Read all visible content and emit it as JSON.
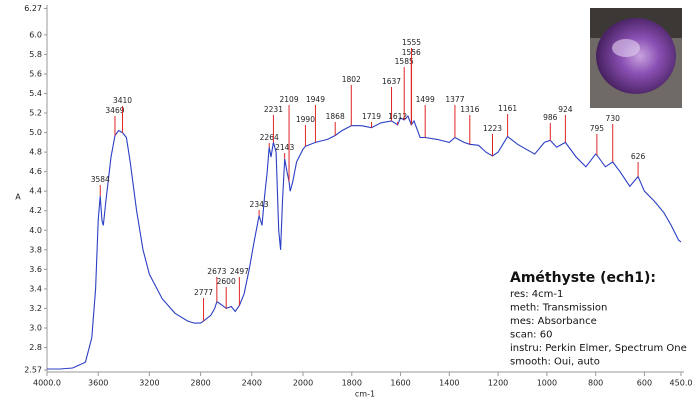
{
  "chart_data": {
    "type": "line",
    "x_label": "cm-1",
    "y_label": "A",
    "xlim": [
      4000,
      450
    ],
    "xbreak": 2000,
    "ylim": [
      2.57,
      6.27
    ],
    "xticks": [
      {
        "value": 4000,
        "label": "4000.0"
      },
      3600,
      3200,
      2800,
      2400,
      2000,
      1800,
      1600,
      1400,
      1200,
      1000,
      800,
      600,
      {
        "value": 450,
        "label": "450.0"
      }
    ],
    "yticks": [
      2.57,
      2.8,
      {
        "value": 3,
        "label": "3.0"
      },
      3.2,
      3.4,
      3.6,
      3.8,
      {
        "value": 4,
        "label": "4.0"
      },
      4.2,
      4.4,
      4.6,
      4.8,
      {
        "value": 5,
        "label": "5.0"
      },
      5.2,
      5.4,
      5.6,
      5.8,
      {
        "value": 6,
        "label": "6.0"
      },
      6.27
    ],
    "color": "#2b3fc4",
    "peak_color": "#e02424",
    "x": [
      4000,
      3900,
      3800,
      3700,
      3650,
      3620,
      3600,
      3584,
      3570,
      3560,
      3540,
      3500,
      3469,
      3440,
      3410,
      3380,
      3350,
      3300,
      3250,
      3200,
      3100,
      3000,
      2900,
      2850,
      2800,
      2777,
      2720,
      2690,
      2673,
      2640,
      2600,
      2560,
      2530,
      2497,
      2460,
      2420,
      2380,
      2343,
      2320,
      2300,
      2280,
      2264,
      2250,
      2231,
      2210,
      2190,
      2175,
      2160,
      2143,
      2125,
      2109,
      2100,
      2080,
      2050,
      2000,
      1990,
      1949,
      1900,
      1868,
      1840,
      1802,
      1760,
      1719,
      1680,
      1637,
      1612,
      1600,
      1585,
      1570,
      1556,
      1545,
      1520,
      1499,
      1450,
      1400,
      1377,
      1340,
      1316,
      1280,
      1250,
      1223,
      1200,
      1161,
      1120,
      1050,
      1010,
      986,
      960,
      924,
      880,
      840,
      800,
      795,
      760,
      730,
      700,
      660,
      626,
      600,
      560,
      520,
      490,
      460,
      450
    ],
    "values": [
      2.58,
      2.58,
      2.59,
      2.65,
      2.9,
      3.4,
      4.1,
      4.35,
      4.1,
      4.05,
      4.3,
      4.75,
      4.97,
      5.02,
      5.0,
      4.95,
      4.7,
      4.2,
      3.8,
      3.55,
      3.3,
      3.15,
      3.07,
      3.05,
      3.05,
      3.07,
      3.13,
      3.2,
      3.27,
      3.24,
      3.2,
      3.22,
      3.17,
      3.23,
      3.35,
      3.6,
      3.9,
      4.15,
      4.05,
      4.35,
      4.6,
      4.85,
      4.75,
      4.9,
      4.8,
      4.0,
      3.8,
      4.3,
      4.73,
      4.6,
      4.5,
      4.4,
      4.5,
      4.7,
      4.83,
      4.86,
      4.9,
      4.93,
      4.97,
      5.02,
      5.07,
      5.07,
      5.05,
      5.1,
      5.12,
      5.08,
      5.15,
      5.13,
      5.17,
      5.08,
      5.12,
      4.95,
      4.95,
      4.93,
      4.9,
      4.95,
      4.9,
      4.88,
      4.87,
      4.8,
      4.76,
      4.8,
      4.96,
      4.88,
      4.78,
      4.9,
      4.92,
      4.85,
      4.9,
      4.75,
      4.65,
      4.78,
      4.77,
      4.65,
      4.7,
      4.6,
      4.45,
      4.55,
      4.4,
      4.3,
      4.18,
      4.05,
      3.9,
      3.88
    ],
    "peaks": [
      3584,
      3469,
      3410,
      2777,
      2673,
      2600,
      2497,
      2343,
      2264,
      2231,
      2143,
      2109,
      1990,
      1949,
      1868,
      1802,
      1719,
      1637,
      1612,
      1585,
      1556,
      1555,
      1499,
      1377,
      1316,
      1223,
      1161,
      986,
      924,
      795,
      730,
      626
    ],
    "annotation": {
      "title": "Améthyste (ech1):",
      "lines": [
        "res: 4cm-1",
        "meth: Transmission",
        "mes: Absorbance",
        "scan: 60",
        "instru: Perkin Elmer, Spectrum One",
        "smooth: Oui, auto"
      ]
    }
  }
}
